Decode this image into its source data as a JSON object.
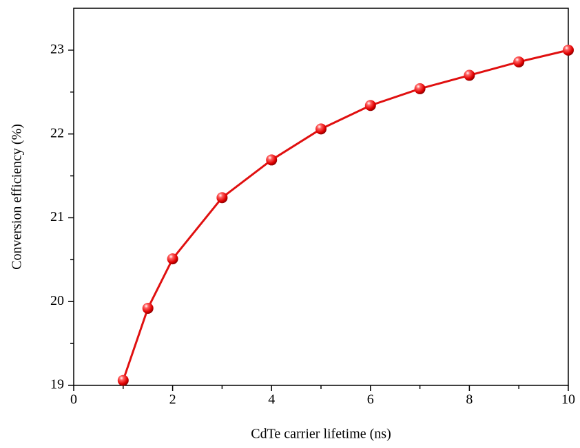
{
  "chart_data": {
    "type": "line",
    "xlabel": "CdTe carrier lifetime (ns)",
    "ylabel": "Conversion efficiency (%)",
    "x": [
      1,
      1.5,
      2,
      3,
      4,
      5,
      6,
      7,
      8,
      9,
      10
    ],
    "series": [
      {
        "color": "#e01010",
        "values": [
          19.06,
          19.92,
          20.51,
          21.24,
          21.69,
          22.06,
          22.34,
          22.54,
          22.7,
          22.86,
          23.0
        ]
      }
    ],
    "xlim": [
      0,
      10
    ],
    "xticks": [
      0,
      2,
      4,
      6,
      8,
      10
    ],
    "ylim": [
      19,
      23.5
    ],
    "yticks": [
      19,
      20,
      21,
      22,
      23
    ]
  }
}
